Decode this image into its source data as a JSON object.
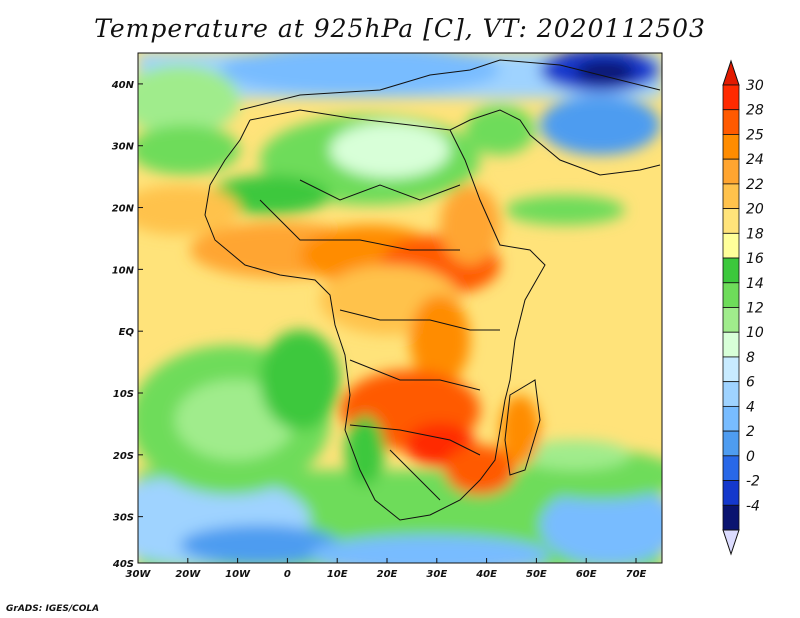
{
  "title": "Temperature at 925hPa [C], VT: 2020112503",
  "credit": "GrADS: IGES/COLA",
  "map": {
    "lat_labels": [
      "40N",
      "30N",
      "20N",
      "10N",
      "EQ",
      "10S",
      "20S",
      "30S",
      "40S"
    ],
    "lon_labels": [
      "30W",
      "20W",
      "10W",
      "0",
      "10E",
      "20E",
      "30E",
      "40E",
      "50E",
      "60E",
      "70E"
    ]
  },
  "colorbar": {
    "labels": [
      "30",
      "28",
      "25",
      "24",
      "22",
      "20",
      "18",
      "16",
      "14",
      "12",
      "10",
      "8",
      "6",
      "4",
      "2",
      "0",
      "-2",
      "-4"
    ],
    "colors": [
      "#ff2a00",
      "#ff5a00",
      "#ff8c00",
      "#ffa530",
      "#ffc24c",
      "#ffe37a",
      "#ffff9a",
      "#3cc83c",
      "#6edc5a",
      "#a0ec8c",
      "#d8ffd8",
      "#c8ebff",
      "#9fd3ff",
      "#78bcff",
      "#4e9cf0",
      "#2868e8",
      "#1438cc",
      "#0a1470"
    ],
    "top_color": "#e21a00",
    "bottom_color": "#dcdcff"
  }
}
